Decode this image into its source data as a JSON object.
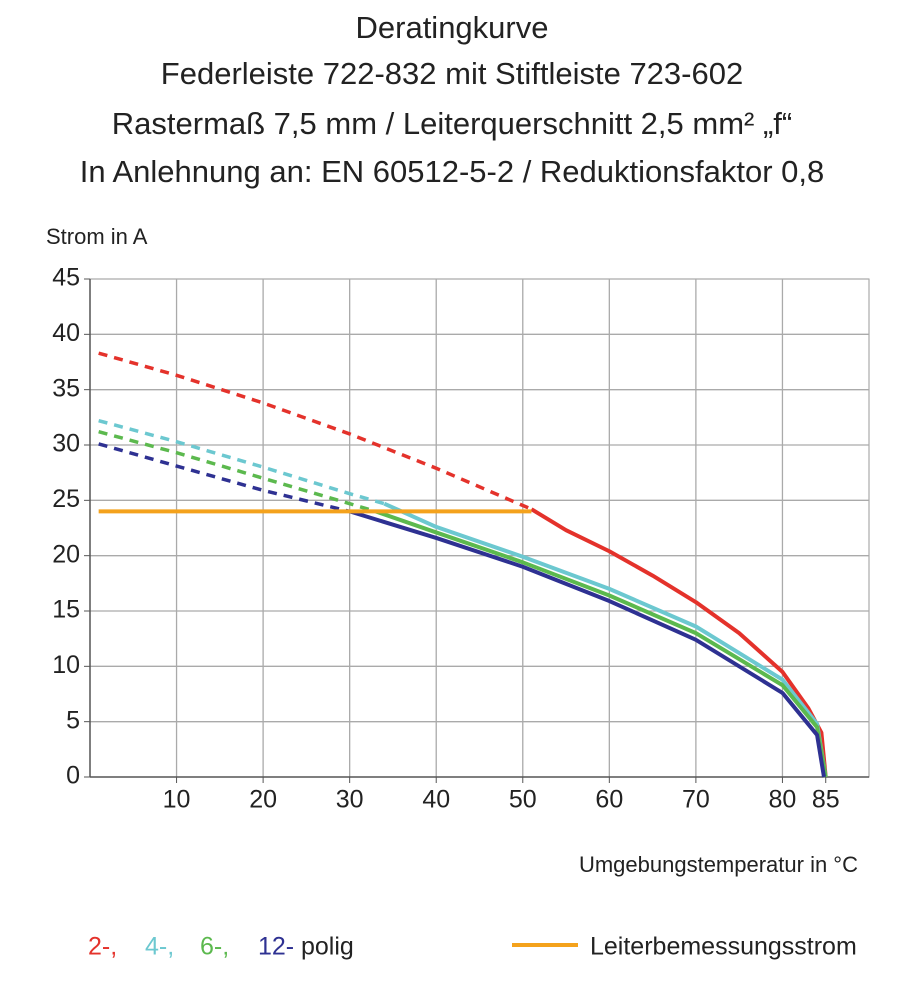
{
  "chart_data": {
    "type": "line",
    "title": [
      "Deratingkurve",
      "Federleiste 722-832 mit Stiftleiste 723-602",
      "Rastermaß 7,5 mm / Leiterquerschnitt 2,5 mm² „f“",
      "In Anlehnung an: EN 60512-5-2 / Reduktionsfaktor 0,8"
    ],
    "y_label": "Strom in A",
    "x_label": "Umgebungstemperatur in °C",
    "xlim": [
      0,
      90
    ],
    "ylim": [
      0,
      45
    ],
    "xticks": [
      10,
      20,
      30,
      40,
      50,
      60,
      70,
      80,
      85
    ],
    "yticks": [
      0,
      5,
      10,
      15,
      20,
      25,
      30,
      35,
      40,
      45
    ],
    "x_grid": [
      10,
      20,
      30,
      40,
      50,
      60,
      70,
      80
    ],
    "grid": true,
    "legend_suffix": "polig",
    "series": [
      {
        "name": "2-,",
        "color": "#e4322b",
        "dashed_x": [
          1,
          10,
          20,
          30,
          40,
          51
        ],
        "dashed_values": [
          38.3,
          36.3,
          33.8,
          31,
          27.9,
          24.2
        ],
        "x": [
          51,
          55,
          60,
          65,
          70,
          75,
          80,
          83,
          84.5,
          85
        ],
        "values": [
          24.2,
          22.3,
          20.4,
          18.2,
          15.8,
          13,
          9.5,
          6.2,
          4,
          0
        ]
      },
      {
        "name": "4-,",
        "color": "#6cc8d0",
        "dashed_x": [
          1,
          10,
          20,
          30,
          34
        ],
        "dashed_values": [
          32.2,
          30.3,
          28,
          25.6,
          24.7
        ],
        "x": [
          34,
          40,
          50,
          60,
          70,
          80,
          84,
          85
        ],
        "values": [
          24.7,
          22.6,
          19.9,
          17,
          13.6,
          8.8,
          4.8,
          0
        ]
      },
      {
        "name": "6-,",
        "color": "#5cb94e",
        "dashed_x": [
          1,
          10,
          20,
          30,
          33
        ],
        "dashed_values": [
          31.2,
          29.3,
          27,
          24.7,
          24
        ],
        "x": [
          33,
          40,
          50,
          60,
          70,
          80,
          84,
          85
        ],
        "values": [
          24,
          22.1,
          19.4,
          16.4,
          13,
          8.3,
          4.5,
          0
        ]
      },
      {
        "name": "12-",
        "color": "#2e3192",
        "dashed_x": [
          1,
          10,
          20,
          30
        ],
        "dashed_values": [
          30.1,
          28.1,
          25.9,
          24
        ],
        "x": [
          30,
          40,
          50,
          60,
          70,
          80,
          84,
          84.8
        ],
        "values": [
          24,
          21.6,
          19,
          15.9,
          12.4,
          7.6,
          3.8,
          0
        ]
      },
      {
        "name": "Leiterbemessungsstrom",
        "color": "#f4a21c",
        "x": [
          1,
          51
        ],
        "values": [
          24,
          24
        ]
      }
    ]
  }
}
